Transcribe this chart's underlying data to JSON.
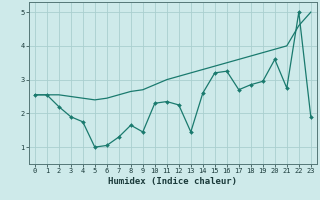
{
  "xlabel": "Humidex (Indice chaleur)",
  "xlim_min": -0.5,
  "xlim_max": 23.5,
  "ylim_min": 0.5,
  "ylim_max": 5.3,
  "yticks": [
    1,
    2,
    3,
    4,
    5
  ],
  "bg_color": "#ceeaea",
  "grid_color": "#aacfcf",
  "line_color": "#1a7a6e",
  "line1_x": [
    0,
    1,
    2,
    3,
    4,
    5,
    6,
    7,
    8,
    9,
    10,
    11,
    12,
    13,
    14,
    15,
    16,
    17,
    18,
    19,
    20,
    21,
    22,
    23
  ],
  "line1_y": [
    2.55,
    2.55,
    2.55,
    2.5,
    2.45,
    2.4,
    2.45,
    2.55,
    2.65,
    2.7,
    2.85,
    3.0,
    3.1,
    3.2,
    3.3,
    3.4,
    3.5,
    3.6,
    3.7,
    3.8,
    3.9,
    4.0,
    4.6,
    5.0
  ],
  "line2_x": [
    0,
    1,
    2,
    3,
    4,
    5,
    6,
    7,
    8,
    9,
    10,
    11,
    12,
    13,
    14,
    15,
    16,
    17,
    18,
    19,
    20,
    21,
    22,
    23
  ],
  "line2_y": [
    2.55,
    2.55,
    2.2,
    1.9,
    1.75,
    1.0,
    1.05,
    1.3,
    1.65,
    1.45,
    2.3,
    2.35,
    2.25,
    1.45,
    2.6,
    3.2,
    3.25,
    2.7,
    2.85,
    2.95,
    3.6,
    2.75,
    5.0,
    1.9
  ],
  "xtick_labels": [
    "0",
    "1",
    "2",
    "3",
    "4",
    "5",
    "6",
    "7",
    "8",
    "9",
    "10",
    "11",
    "12",
    "13",
    "14",
    "15",
    "16",
    "17",
    "18",
    "19",
    "20",
    "21",
    "22",
    "23"
  ],
  "xlabel_fontsize": 6.5,
  "tick_fontsize": 5.0,
  "marker_size": 2.0,
  "linewidth": 0.9
}
